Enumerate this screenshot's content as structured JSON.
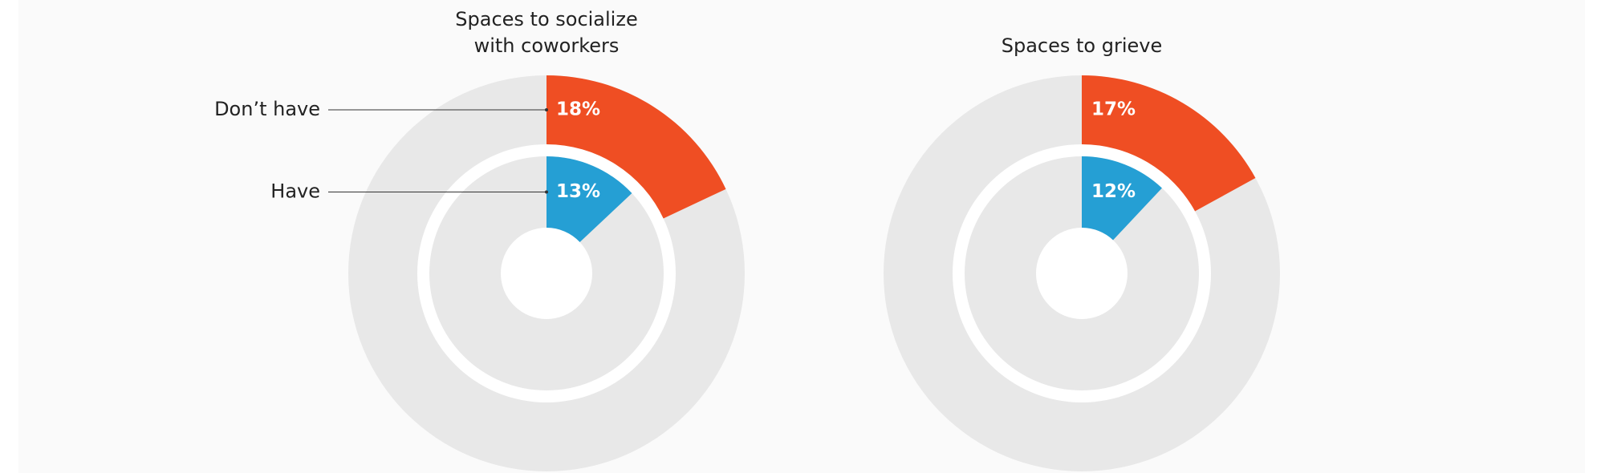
{
  "chart_data": [
    {
      "type": "nested-donut",
      "title": "Spaces to socialize with coworkers",
      "series": [
        {
          "name": "Don’t have",
          "color": "#ef4e23",
          "values": [
            18
          ],
          "value_labels": [
            "18%"
          ]
        },
        {
          "name": "Have",
          "color": "#259fd4",
          "values": [
            13
          ],
          "value_labels": [
            "13%"
          ]
        }
      ]
    },
    {
      "type": "nested-donut",
      "title": "Spaces to grieve",
      "series": [
        {
          "color": "#ef4e23",
          "values": [
            17
          ],
          "value_labels": [
            "17%"
          ]
        },
        {
          "color": "#259fd4",
          "values": [
            12
          ],
          "value_labels": [
            "12%"
          ]
        }
      ]
    }
  ]
}
